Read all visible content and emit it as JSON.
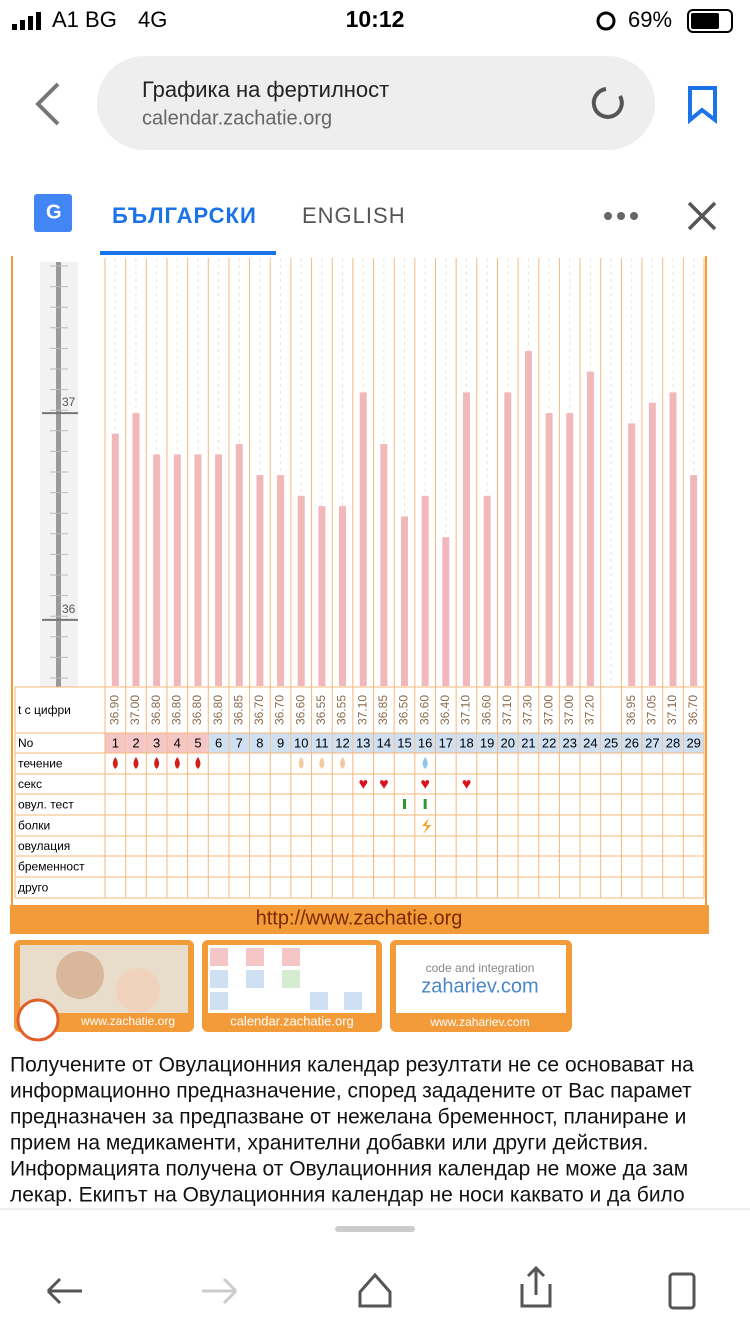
{
  "status": {
    "carrier": "A1 BG",
    "network": "4G",
    "time": "10:12",
    "battery": "69%"
  },
  "browser": {
    "title": "Графика на фертилност",
    "url": "calendar.zachatie.org"
  },
  "translate": {
    "lang1": "БЪЛГАРСКИ",
    "lang2": "ENGLISH"
  },
  "chart": {
    "scale": {
      "ylim": [
        35.68,
        37.75
      ],
      "ticks": [
        37,
        36
      ]
    },
    "row_labels": [
      "t с цифри",
      "No",
      "течение",
      "секс",
      "овул. тест",
      "болки",
      "овулация",
      "бременност",
      "друго"
    ],
    "days": [
      1,
      2,
      3,
      4,
      5,
      6,
      7,
      8,
      9,
      10,
      11,
      12,
      13,
      14,
      15,
      16,
      17,
      18,
      19,
      20,
      21,
      22,
      23,
      24,
      25,
      26,
      27,
      28,
      29
    ],
    "temperatures": [
      36.9,
      37.0,
      36.8,
      36.8,
      36.8,
      36.8,
      36.85,
      36.7,
      36.7,
      36.6,
      36.55,
      36.55,
      37.1,
      36.85,
      36.5,
      36.6,
      36.4,
      37.1,
      36.6,
      37.1,
      37.3,
      37.0,
      37.0,
      37.2,
      null,
      36.95,
      37.05,
      37.1,
      36.7
    ],
    "temperature_labels": [
      "36.90",
      "37.00",
      "36.80",
      "36.80",
      "36.80",
      "36.80",
      "36.85",
      "36.70",
      "36.70",
      "36.60",
      "36.55",
      "36.55",
      "37.10",
      "36.85",
      "36.50",
      "36.60",
      "36.40",
      "37.10",
      "36.60",
      "37.10",
      "37.30",
      "37.00",
      "37.00",
      "37.20",
      null,
      "36.95",
      "37.05",
      "37.10",
      "36.70"
    ]
  },
  "footer_link": "http://www.zachatie.org",
  "banners": {
    "b1": "www.zachatie.org",
    "b2": "calendar.zachatie.org",
    "b3_top": "code and integration",
    "b3_mid": "zahariev.com",
    "b3_bottom": "www.zahariev.com"
  },
  "paragraph": [
    "Получените от Овулационния календар резултати не се основават на",
    "информационно предназначение, според зададените от Вас парамет",
    "предназначен за предпазване от нежелана бременност, планиране и",
    "прием на медикаменти, хранителни добавки или други действия.",
    "Информацията получена от Овулационния календар не може да зам",
    "лекар. Екипът на Овулационния календар не носи каквато и да било"
  ]
}
